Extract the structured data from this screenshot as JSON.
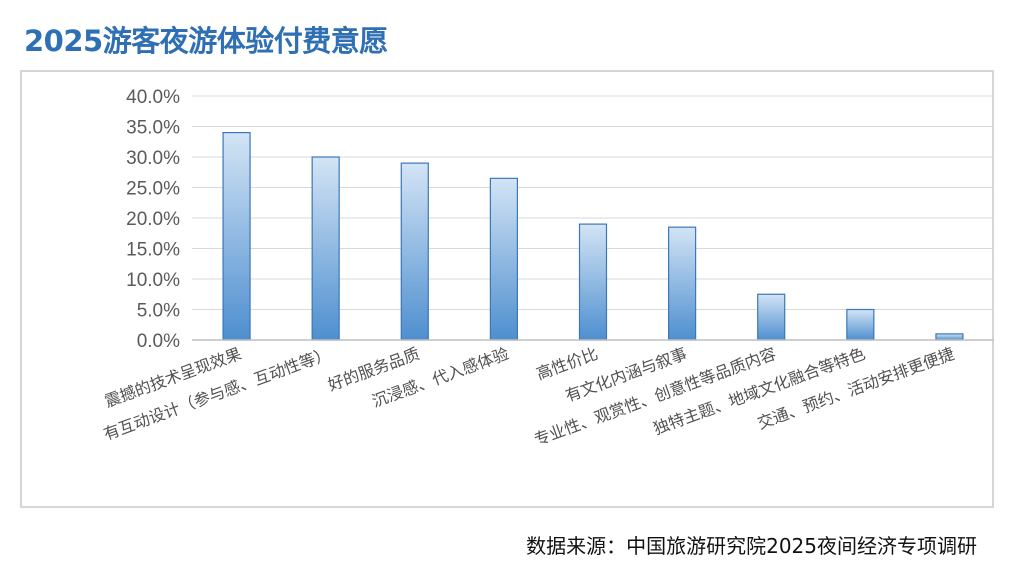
{
  "page": {
    "title": "2025游客夜游体验付费意愿",
    "source": "数据来源：中国旅游研究院2025夜间经济专项调研"
  },
  "colors": {
    "title": "#2f6fb3",
    "bar_light": "#d3e4f5",
    "bar_dark": "#4e8fcf",
    "bar_stroke": "#3a78b8",
    "gridline": "#d9d9d9"
  },
  "chart_data": {
    "type": "bar",
    "categories": [
      "震撼的技术呈现效果",
      "有互动设计（参与感、互动性等）",
      "好的服务品质",
      "沉浸感、代入感体验",
      "高性价比",
      "有文化内涵与叙事",
      "专业性、观赏性、创意性等品质内容",
      "独特主题、地域文化融合等特色",
      "交通、预约、活动安排更便捷"
    ],
    "values": [
      34.0,
      30.0,
      29.0,
      26.5,
      19.0,
      18.5,
      7.5,
      5.0,
      1.0
    ],
    "yticks": [
      "0.0%",
      "5.0%",
      "10.0%",
      "15.0%",
      "20.0%",
      "25.0%",
      "30.0%",
      "35.0%",
      "40.0%"
    ],
    "ylim": [
      0,
      40
    ],
    "grid": true,
    "legend": "none",
    "title": "",
    "xlabel": "",
    "ylabel": ""
  }
}
